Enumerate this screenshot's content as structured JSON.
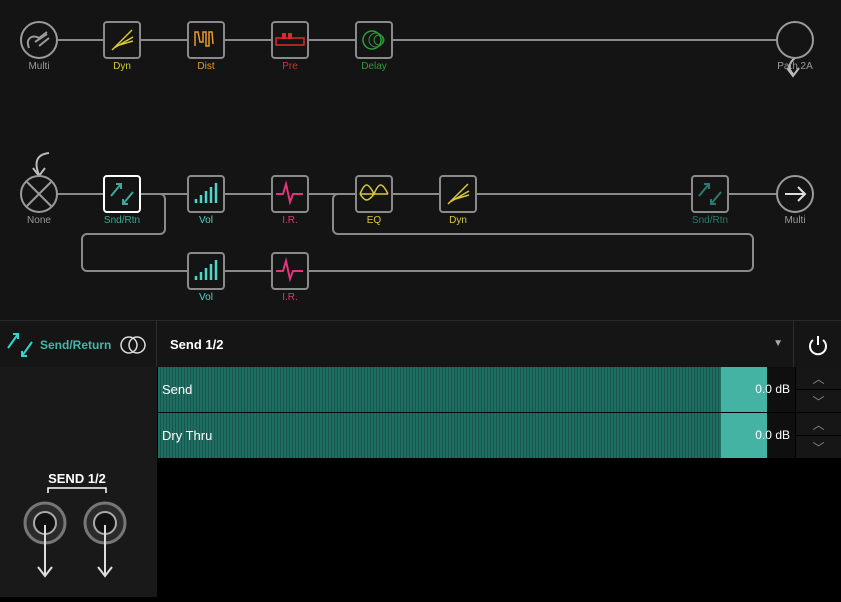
{
  "graph": {
    "path1": [
      {
        "label": "Multi",
        "color": "#9a9a9a",
        "icon": "multi-input-icon",
        "type": "io"
      },
      {
        "label": "Dyn",
        "color": "#d9c83a",
        "icon": "dynamics-icon"
      },
      {
        "label": "Dist",
        "color": "#e89a2a",
        "icon": "distortion-icon"
      },
      {
        "label": "Pre",
        "color": "#e02a2a",
        "icon": "preamp-icon"
      },
      {
        "label": "Delay",
        "color": "#2f9a3a",
        "icon": "delay-icon"
      },
      {
        "label": "Path 2A",
        "color": "#9a9a9a",
        "icon": "path-output-icon",
        "type": "io"
      }
    ],
    "path2a": [
      {
        "label": "None",
        "color": "#9a9a9a",
        "icon": "none-input-icon"
      },
      {
        "label": "Snd/Rtn",
        "color": "#3fa89a",
        "icon": "send-return-icon",
        "selected": true
      },
      {
        "label": "Vol",
        "color": "#4fd6c6",
        "icon": "volume-icon"
      },
      {
        "label": "I.R.",
        "color": "#e0357a",
        "icon": "impulse-response-icon"
      },
      {
        "label": "EQ",
        "color": "#d9c83a",
        "icon": "eq-icon"
      },
      {
        "label": "Dyn",
        "color": "#d9c83a",
        "icon": "dynamics-icon"
      },
      {
        "label": "Snd/Rtn",
        "color": "#2a7a70",
        "icon": "send-return-icon",
        "bypassed": true
      },
      {
        "label": "Multi",
        "color": "#9a9a9a",
        "icon": "multi-output-icon"
      }
    ],
    "path2b": [
      {
        "label": "Vol",
        "color": "#4fd6c6",
        "icon": "volume-icon"
      },
      {
        "label": "I.R.",
        "color": "#e0357a",
        "icon": "impulse-response-icon"
      }
    ]
  },
  "header": {
    "model": "Send/Return",
    "preset": "Send 1/2",
    "accent": "#3fb8a6"
  },
  "params": [
    {
      "name": "Send",
      "value": "0.0 dB"
    },
    {
      "name": "Dry Thru",
      "value": "0.0 dB"
    }
  ],
  "jacks": {
    "label": "SEND 1/2"
  }
}
